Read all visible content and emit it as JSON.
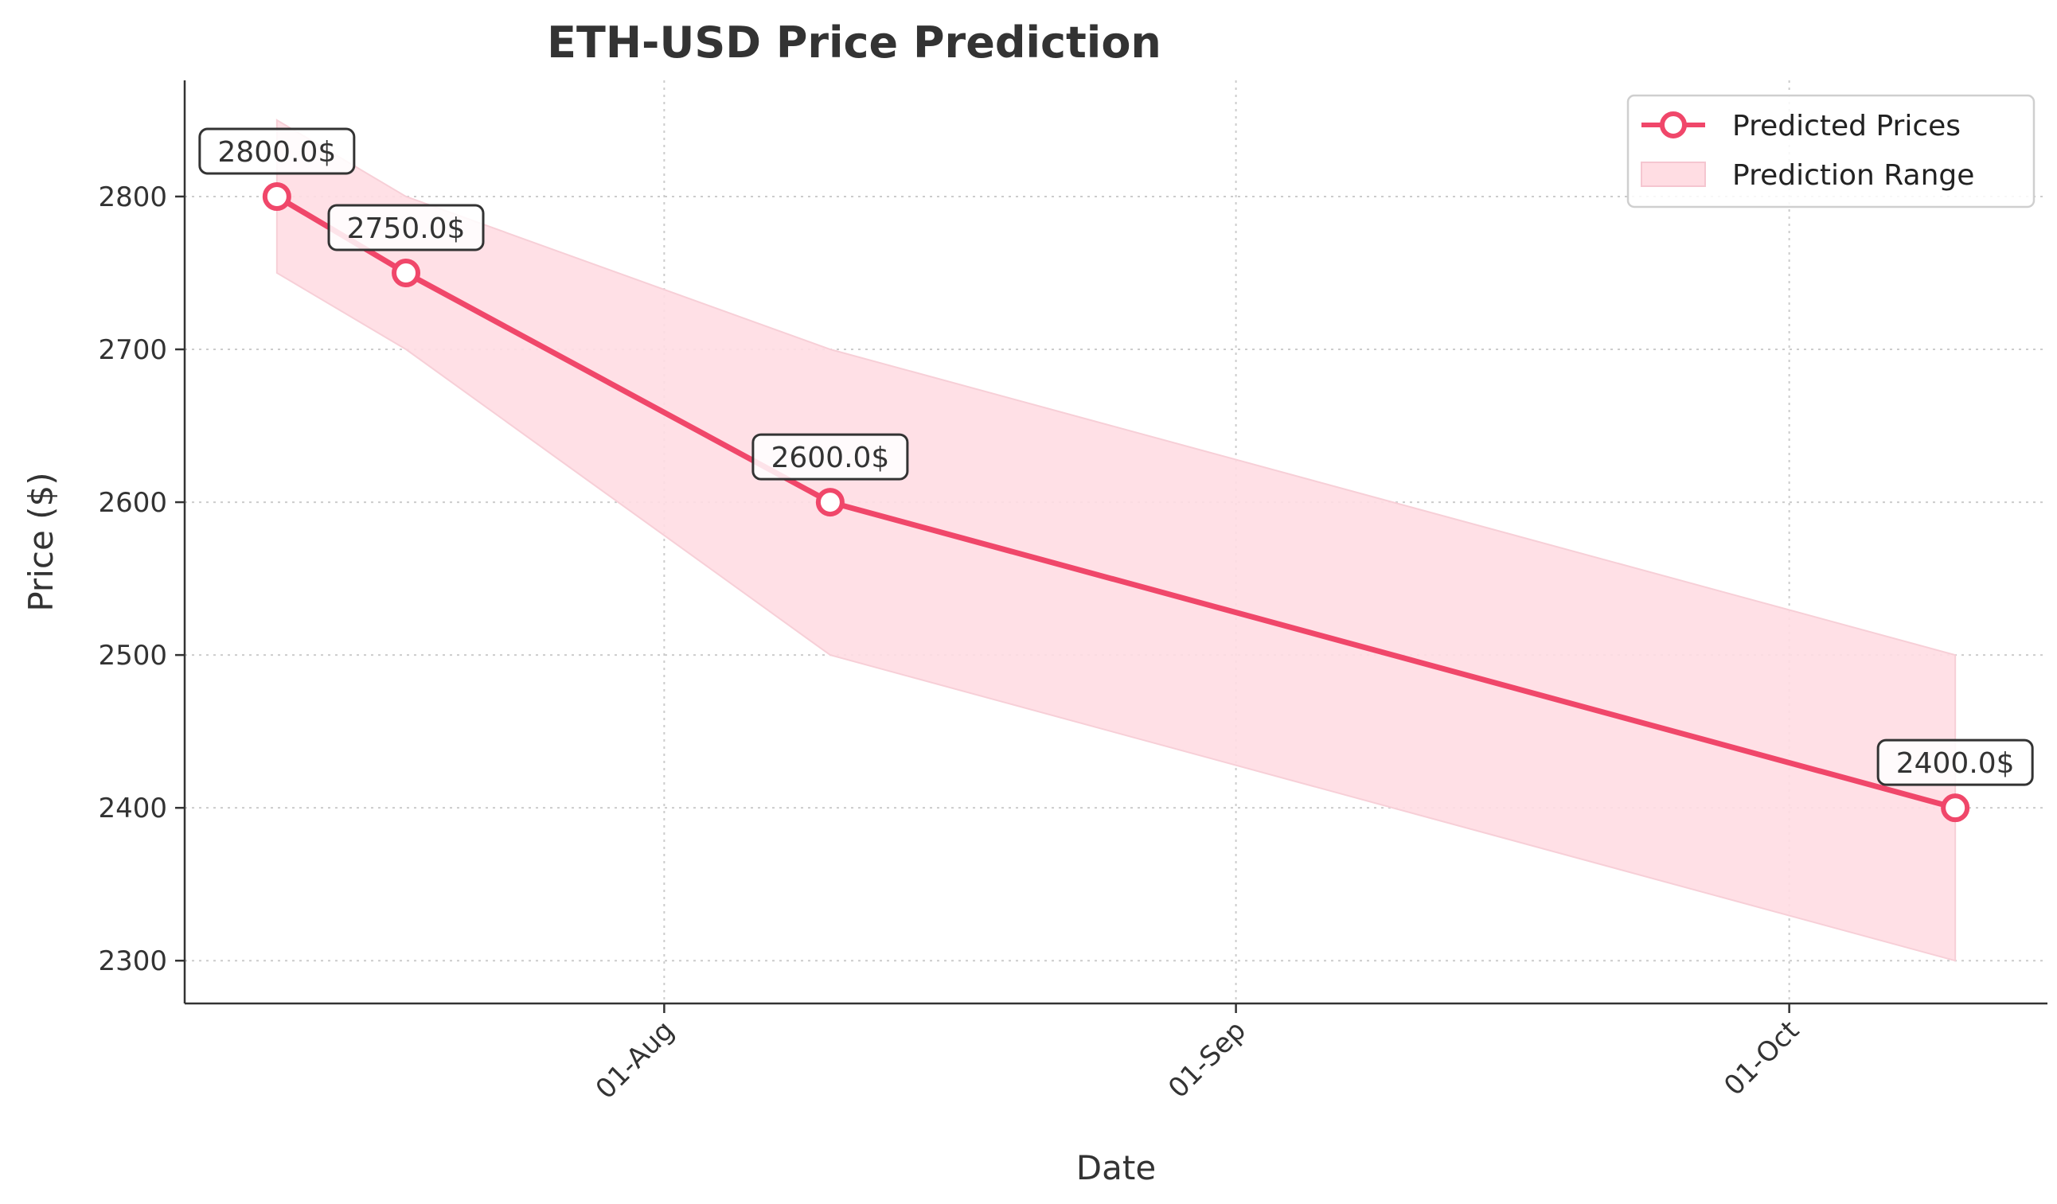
{
  "chart_data": {
    "type": "line",
    "title": "ETH-USD Price Prediction",
    "xlabel": "Date",
    "ylabel": "Price ($)",
    "x_ticks": [
      {
        "date": "2024-08-01",
        "label": "01-Aug"
      },
      {
        "date": "2024-09-01",
        "label": "01-Sep"
      },
      {
        "date": "2024-10-01",
        "label": "01-Oct"
      }
    ],
    "y_ticks": [
      2300,
      2400,
      2500,
      2600,
      2700,
      2800
    ],
    "xlim": [
      "2024-07-06",
      "2024-10-15"
    ],
    "ylim": [
      2272,
      2876
    ],
    "grid": true,
    "legend_position": "top-right",
    "series": [
      {
        "name": "Predicted Prices",
        "color": "#f0476a",
        "points": [
          {
            "date": "2024-07-11",
            "value": 2800.0,
            "label": "2800.0$"
          },
          {
            "date": "2024-07-18",
            "value": 2750.0,
            "label": "2750.0$"
          },
          {
            "date": "2024-08-10",
            "value": 2600.0,
            "label": "2600.0$"
          },
          {
            "date": "2024-10-10",
            "value": 2400.0,
            "label": "2400.0$"
          }
        ]
      }
    ],
    "range": {
      "name": "Prediction Range",
      "color": "#ffdde3",
      "points": [
        {
          "date": "2024-07-11",
          "low": 2750,
          "high": 2850
        },
        {
          "date": "2024-07-18",
          "low": 2700,
          "high": 2800
        },
        {
          "date": "2024-08-10",
          "low": 2500,
          "high": 2700
        },
        {
          "date": "2024-10-10",
          "low": 2300,
          "high": 2500
        }
      ]
    }
  }
}
